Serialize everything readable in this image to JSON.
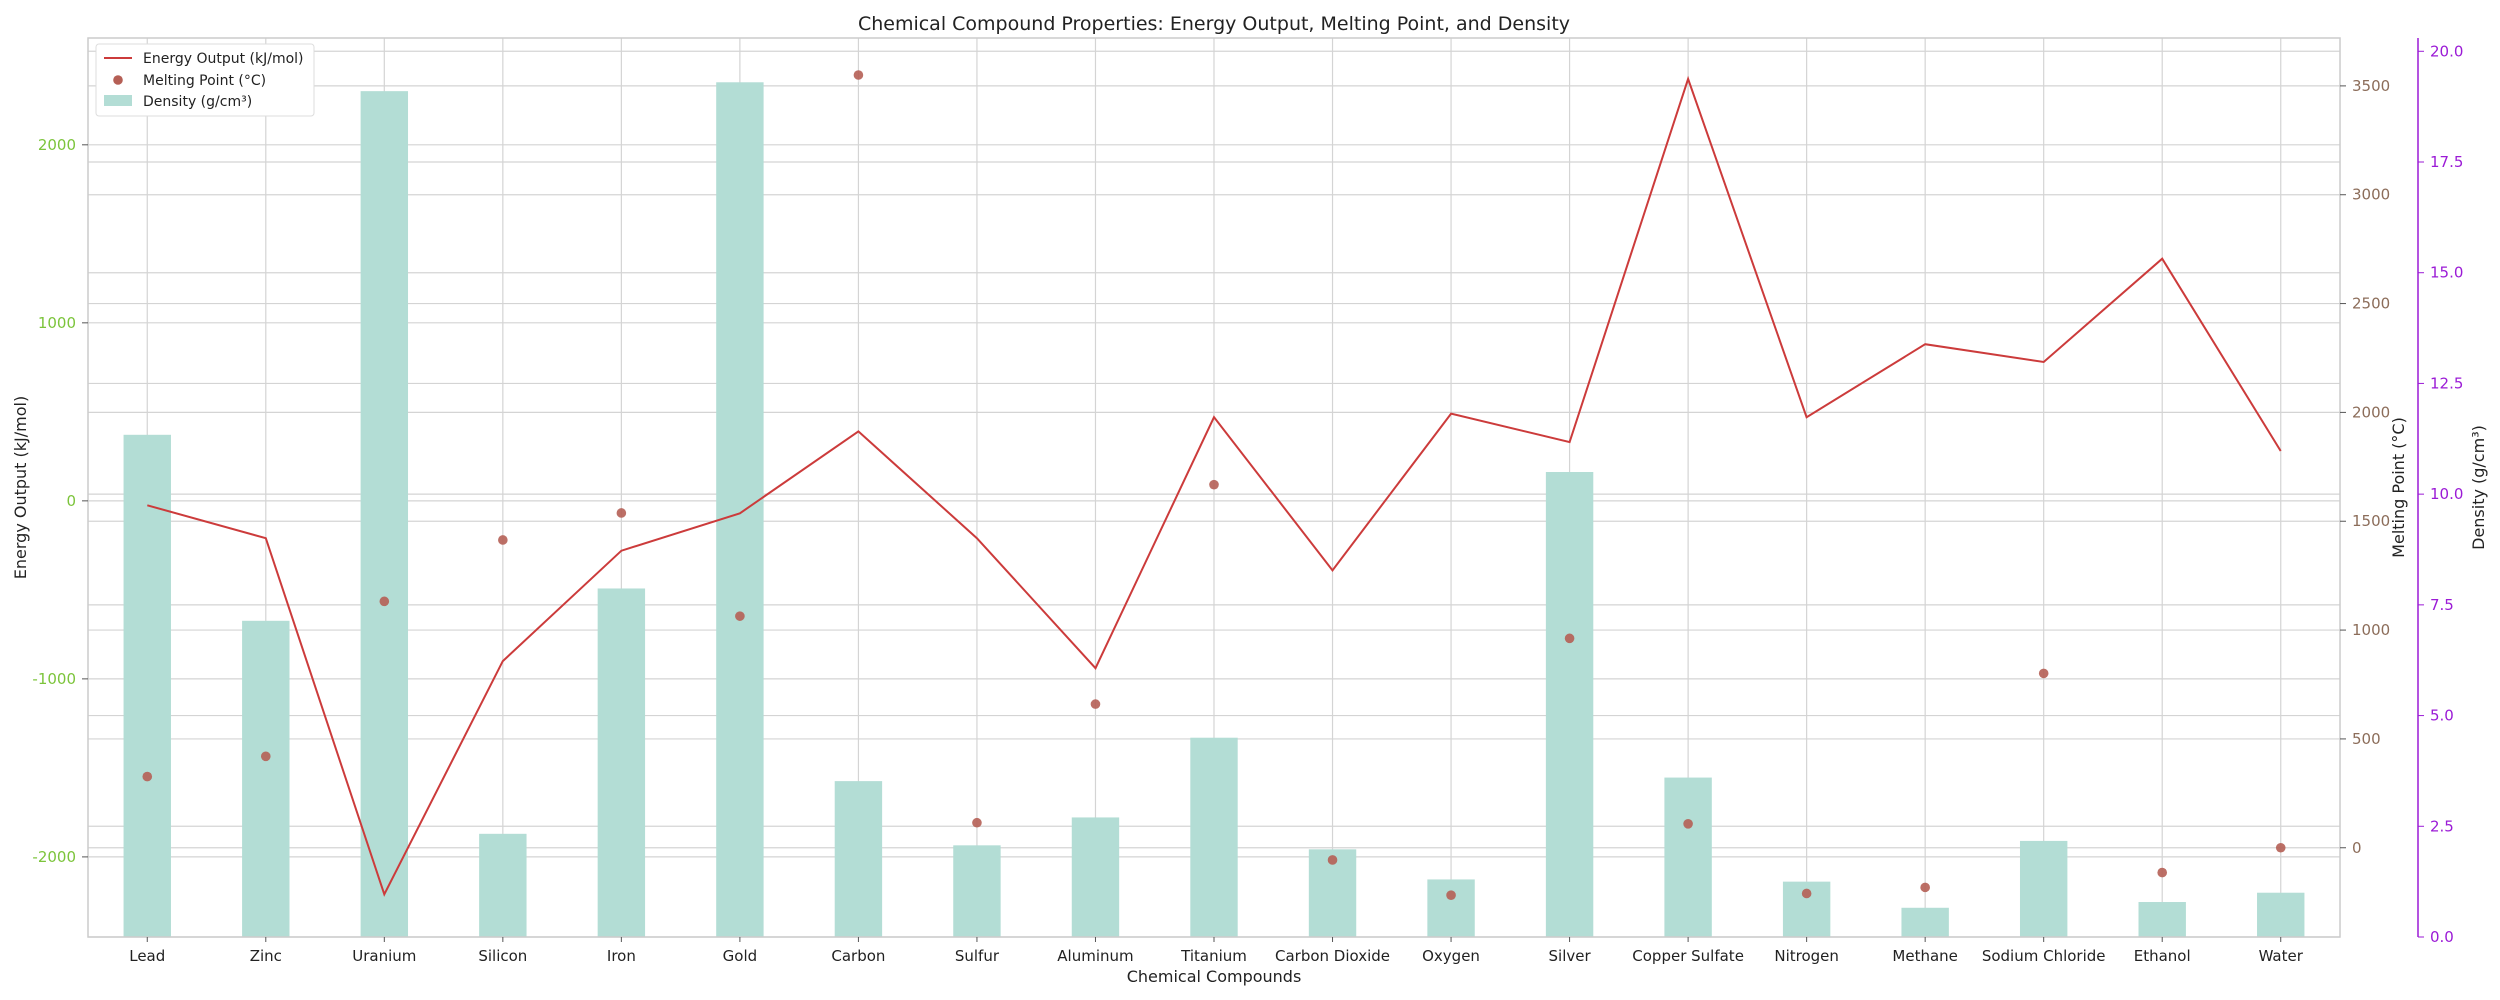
{
  "chart_data": {
    "type": "bar",
    "title": "Chemical Compound Properties: Energy Output, Melting Point, and Density",
    "xlabel": "Chemical Compounds",
    "categories": [
      "Lead",
      "Zinc",
      "Uranium",
      "Silicon",
      "Iron",
      "Gold",
      "Carbon",
      "Sulfur",
      "Aluminum",
      "Titanium",
      "Carbon Dioxide",
      "Oxygen",
      "Silver",
      "Copper Sulfate",
      "Nitrogen",
      "Methane",
      "Sodium Chloride",
      "Ethanol",
      "Water"
    ],
    "axes": {
      "energy": {
        "label": "Energy Output (kJ/mol)",
        "ylim": [
          -2450,
          2600
        ],
        "ticks": [
          -2000,
          -1000,
          0,
          1000,
          2000
        ],
        "color": "#7cc43b"
      },
      "melting": {
        "label": "Melting Point (°C)",
        "ylim": [
          -410,
          3720
        ],
        "ticks": [
          0,
          500,
          1000,
          1500,
          2000,
          2500,
          3000,
          3500
        ],
        "color": "#8c6d5a"
      },
      "density": {
        "label": "Density (g/cm³)",
        "ylim": [
          0,
          20.3
        ],
        "ticks": [
          0.0,
          2.5,
          5.0,
          7.5,
          10.0,
          12.5,
          15.0,
          17.5,
          20.0
        ],
        "tick_labels": [
          "0.0",
          "2.5",
          "5.0",
          "7.5",
          "10.0",
          "12.5",
          "15.0",
          "17.5",
          "20.0"
        ],
        "color": "#9b1bd6"
      }
    },
    "series": [
      {
        "name": "Energy Output (kJ/mol)",
        "type": "line",
        "axis": "energy",
        "color": "#cc3b3b",
        "values": [
          -25,
          -210,
          -2210,
          -900,
          -280,
          -70,
          390,
          -210,
          -940,
          470,
          -390,
          490,
          330,
          2370,
          470,
          880,
          780,
          1360,
          280
        ]
      },
      {
        "name": "Melting Point (°C)",
        "type": "scatter",
        "axis": "melting",
        "color": "#b55f55",
        "values": [
          327,
          420,
          1132,
          1414,
          1538,
          1064,
          3550,
          115,
          660,
          1668,
          -56,
          -218,
          962,
          110,
          -210,
          -182,
          801,
          -114,
          0
        ]
      },
      {
        "name": "Density (g/cm³)",
        "type": "bar",
        "axis": "density",
        "color": "#b3ddd5",
        "values": [
          11.34,
          7.14,
          19.1,
          2.33,
          7.87,
          19.3,
          3.52,
          2.07,
          2.7,
          4.5,
          1.98,
          1.3,
          10.5,
          3.6,
          1.25,
          0.66,
          2.17,
          0.79,
          1.0
        ]
      }
    ],
    "grid": true,
    "legend_position": "top-left"
  }
}
